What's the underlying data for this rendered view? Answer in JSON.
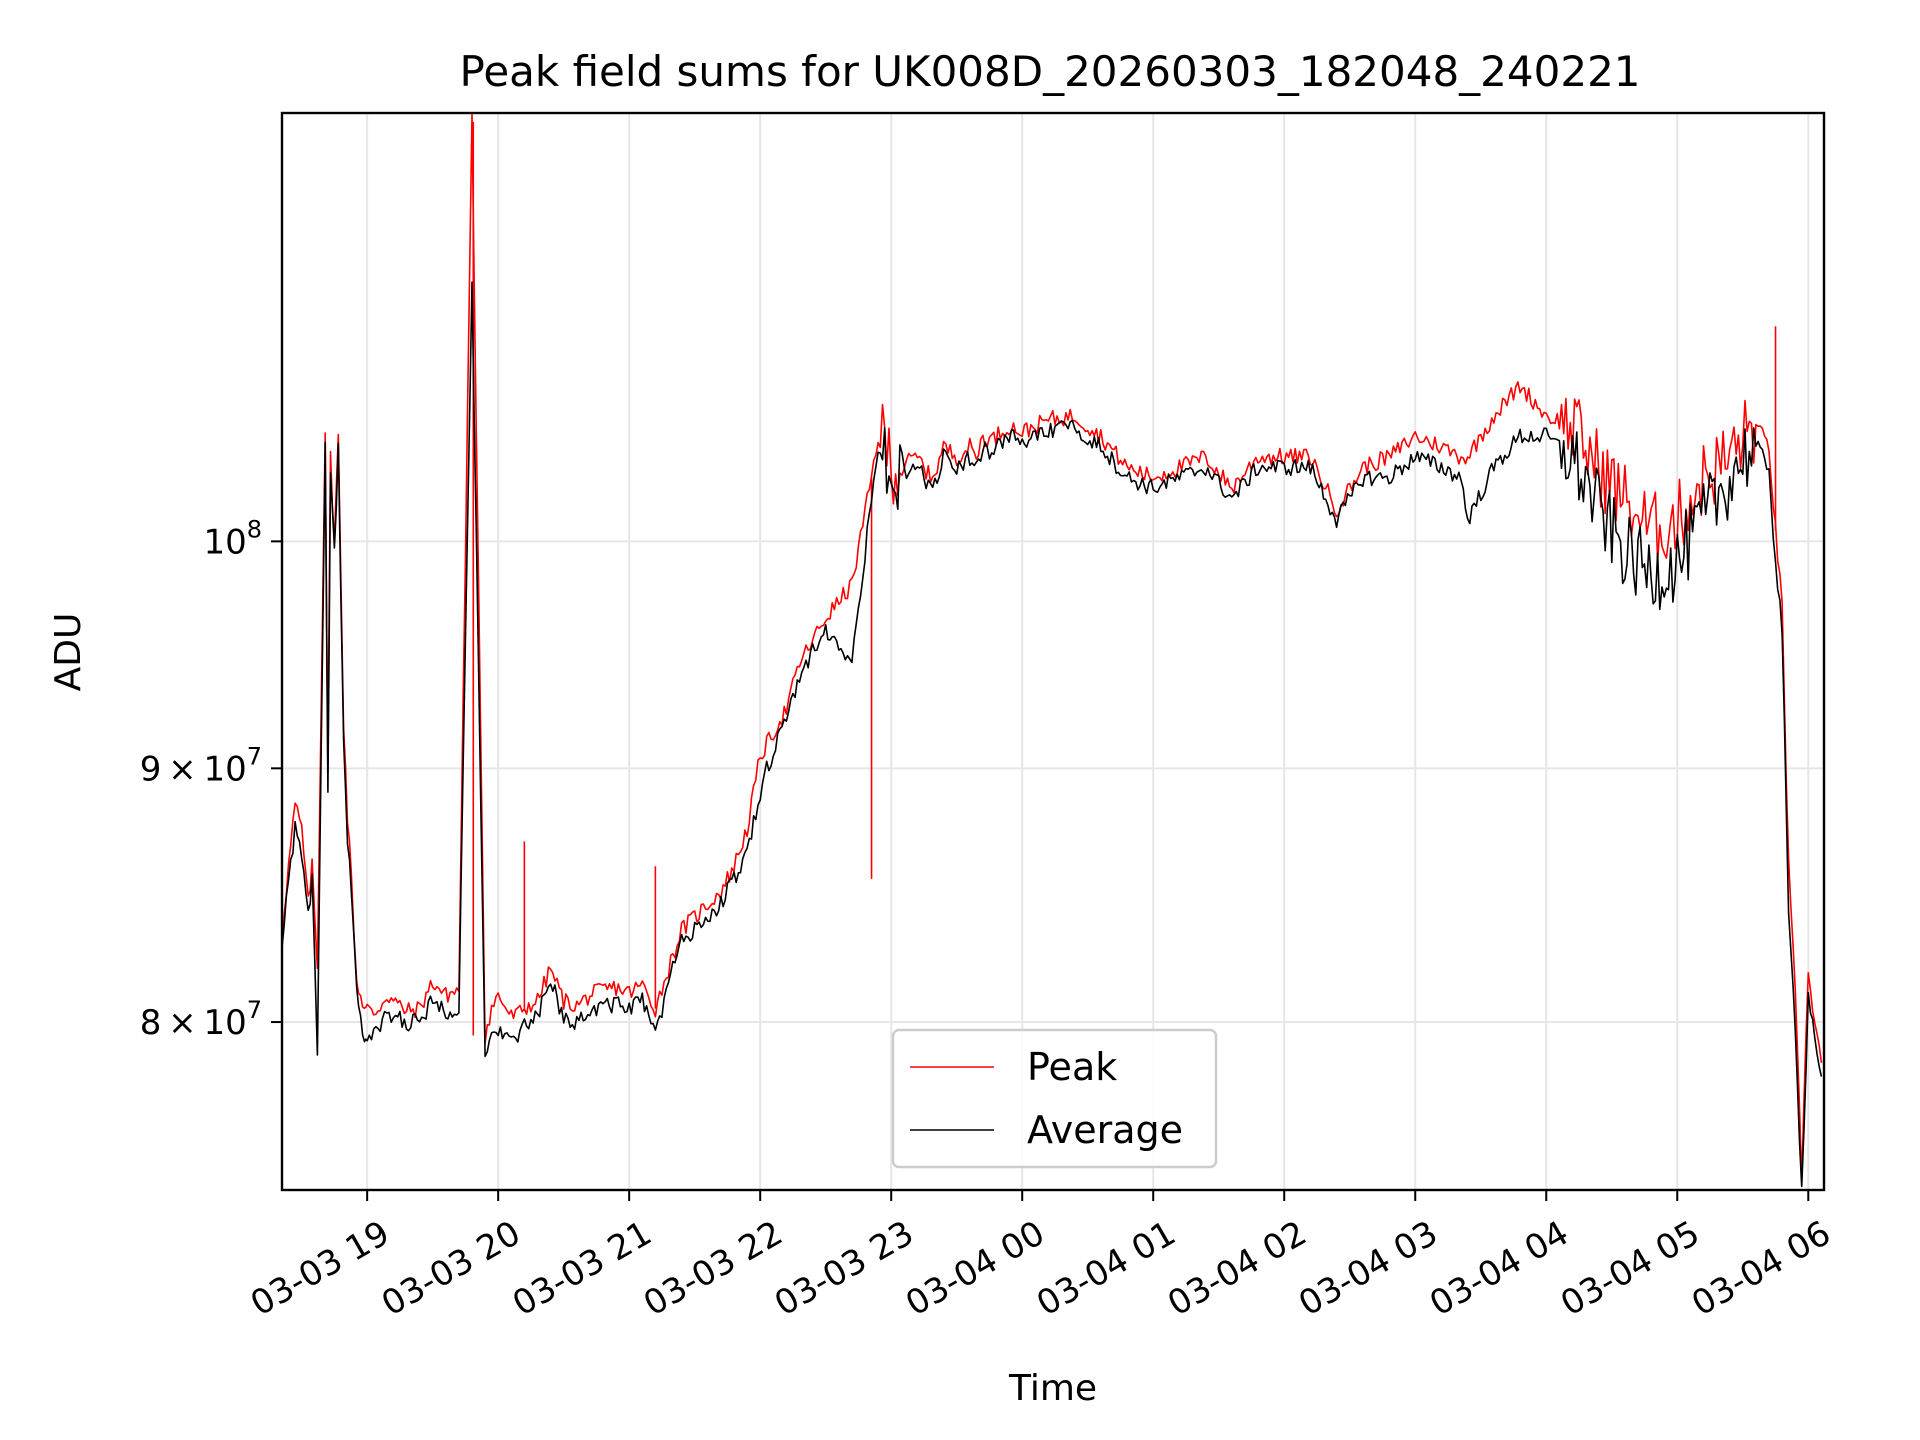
{
  "chart_data": {
    "type": "line",
    "title": "Peak field sums for UK008D_20260303_182048_240221",
    "xlabel": "Time",
    "ylabel": "ADU",
    "yscale": "log",
    "ylim": [
      74000000,
      122000000
    ],
    "xlim_hours": [
      -0.65,
      11.12
    ],
    "grid": true,
    "legend_position": "lower-center",
    "x_ticks": [
      {
        "label": "03-03 19",
        "hour": 0
      },
      {
        "label": "03-03 20",
        "hour": 1
      },
      {
        "label": "03-03 21",
        "hour": 2
      },
      {
        "label": "03-03 22",
        "hour": 3
      },
      {
        "label": "03-03 23",
        "hour": 4
      },
      {
        "label": "03-04 00",
        "hour": 5
      },
      {
        "label": "03-04 01",
        "hour": 6
      },
      {
        "label": "03-04 02",
        "hour": 7
      },
      {
        "label": "03-04 03",
        "hour": 8
      },
      {
        "label": "03-04 04",
        "hour": 9
      },
      {
        "label": "03-04 05",
        "hour": 10
      },
      {
        "label": "03-04 06",
        "hour": 11
      }
    ],
    "y_ticks": [
      {
        "value": 80000000,
        "base": "8",
        "exp": "7"
      },
      {
        "value": 90000000,
        "base": "9",
        "exp": "7"
      },
      {
        "value": 100000000,
        "base": "10",
        "exp": "8"
      }
    ],
    "times_symbol": "×",
    "series": [
      {
        "name": "Peak",
        "color": "#ff0000",
        "x_hours": [
          -0.65,
          -0.6,
          -0.55,
          -0.5,
          -0.45,
          -0.42,
          -0.38,
          -0.32,
          -0.3,
          -0.28,
          -0.25,
          -0.22,
          -0.2,
          -0.18,
          -0.15,
          -0.12,
          -0.08,
          -0.05,
          -0.02,
          0.0,
          0.05,
          0.1,
          0.15,
          0.2,
          0.3,
          0.4,
          0.5,
          0.6,
          0.7,
          0.8,
          0.9,
          0.95,
          1.0,
          1.1,
          1.15,
          1.2,
          1.3,
          1.4,
          1.5,
          1.6,
          1.7,
          1.8,
          1.9,
          2.0,
          2.1,
          2.2,
          2.3,
          2.4,
          2.5,
          2.6,
          2.7,
          2.8,
          2.9,
          3.0,
          3.05,
          3.1,
          3.15,
          3.2,
          3.3,
          3.5,
          3.7,
          3.85,
          3.9,
          3.95,
          4.05,
          4.2,
          4.3,
          4.35,
          4.4,
          4.5,
          4.6,
          4.65,
          4.7,
          4.75,
          4.8,
          4.9,
          5.0,
          5.2,
          5.4,
          5.6,
          5.8,
          6.0,
          6.2,
          6.4,
          6.6,
          6.8,
          7.0,
          7.2,
          7.4,
          7.6,
          7.8,
          8.0,
          8.2,
          8.35,
          8.4,
          8.6,
          8.8,
          9.0,
          9.2,
          9.4,
          9.6,
          9.8,
          10.0,
          10.2,
          10.4,
          10.5,
          10.6,
          10.7,
          10.75,
          10.8,
          10.85,
          10.9,
          10.95,
          11.0,
          11.05,
          11.1
        ],
        "values": [
          83500000,
          86000000,
          88500000,
          87500000,
          84500000,
          86000000,
          82000000,
          105500000,
          90000000,
          104000000,
          100000000,
          105000000,
          98000000,
          92000000,
          88000000,
          85500000,
          81500000,
          81000000,
          80500000,
          80500000,
          80300000,
          80600000,
          81000000,
          80800000,
          80400000,
          80500000,
          81500000,
          81000000,
          81200000,
          121500000,
          79500000,
          80500000,
          81000000,
          80200000,
          80300000,
          80500000,
          80800000,
          82000000,
          80800000,
          80600000,
          81000000,
          81200000,
          81300000,
          81100000,
          81400000,
          80500000,
          82000000,
          83500000,
          84000000,
          84500000,
          85000000,
          86000000,
          87500000,
          90500000,
          91000000,
          91500000,
          92000000,
          92500000,
          94500000,
          96500000,
          98000000,
          103000000,
          105000000,
          104500000,
          103500000,
          104000000,
          103000000,
          103500000,
          104500000,
          104000000,
          104500000,
          104000000,
          105000000,
          104800000,
          105000000,
          105500000,
          105200000,
          105800000,
          106000000,
          105000000,
          103500000,
          103000000,
          103500000,
          104000000,
          102500000,
          104000000,
          104000000,
          104000000,
          101500000,
          103500000,
          104000000,
          105000000,
          104500000,
          104000000,
          104000000,
          106000000,
          107500000,
          106000000,
          105500000,
          103500000,
          102000000,
          100500000,
          101000000,
          103000000,
          104000000,
          105000000,
          105500000,
          104500000,
          100500000,
          97000000,
          86000000,
          81000000,
          74500000,
          82000000,
          80000000,
          78500000
        ],
        "spikes": [
          {
            "x_hour": 0.81,
            "value": 121500000
          },
          {
            "x_hour": 1.2,
            "value": 87000000
          },
          {
            "x_hour": 2.2,
            "value": 86000000
          },
          {
            "x_hour": 3.85,
            "value": 85500000
          },
          {
            "x_hour": 10.75,
            "value": 110500000
          }
        ]
      },
      {
        "name": "Average",
        "color": "#000000",
        "x_hours": [
          -0.65,
          -0.6,
          -0.55,
          -0.5,
          -0.45,
          -0.42,
          -0.38,
          -0.32,
          -0.3,
          -0.28,
          -0.25,
          -0.22,
          -0.2,
          -0.18,
          -0.15,
          -0.12,
          -0.08,
          -0.05,
          -0.02,
          0.0,
          0.05,
          0.1,
          0.15,
          0.2,
          0.3,
          0.4,
          0.5,
          0.6,
          0.7,
          0.8,
          0.9,
          0.95,
          1.0,
          1.1,
          1.15,
          1.2,
          1.3,
          1.4,
          1.5,
          1.6,
          1.7,
          1.8,
          1.9,
          2.0,
          2.1,
          2.2,
          2.3,
          2.4,
          2.5,
          2.6,
          2.7,
          2.8,
          2.9,
          3.0,
          3.05,
          3.1,
          3.15,
          3.2,
          3.3,
          3.5,
          3.7,
          3.85,
          3.9,
          3.95,
          4.05,
          4.2,
          4.3,
          4.35,
          4.4,
          4.5,
          4.6,
          4.65,
          4.7,
          4.75,
          4.8,
          4.9,
          5.0,
          5.2,
          5.4,
          5.6,
          5.8,
          6.0,
          6.2,
          6.4,
          6.6,
          6.8,
          7.0,
          7.2,
          7.4,
          7.6,
          7.8,
          8.0,
          8.2,
          8.35,
          8.4,
          8.6,
          8.8,
          9.0,
          9.2,
          9.4,
          9.6,
          9.8,
          10.0,
          10.2,
          10.4,
          10.5,
          10.6,
          10.7,
          10.75,
          10.8,
          10.85,
          10.9,
          10.95,
          11.0,
          11.05,
          11.1
        ],
        "values": [
          83000000,
          85500000,
          87500000,
          86500000,
          84000000,
          85500000,
          79000000,
          104500000,
          89000000,
          103000000,
          99500000,
          104500000,
          97000000,
          91000000,
          87000000,
          85000000,
          81000000,
          80000000,
          79500000,
          79500000,
          79500000,
          79800000,
          80300000,
          80200000,
          80000000,
          80000000,
          80800000,
          80400000,
          80600000,
          113000000,
          78500000,
          79500000,
          79800000,
          79300000,
          79500000,
          79800000,
          80200000,
          81500000,
          80200000,
          80000000,
          80400000,
          80600000,
          80700000,
          80500000,
          80800000,
          79500000,
          81500000,
          83000000,
          83500000,
          84000000,
          84500000,
          85500000,
          86500000,
          89000000,
          90000000,
          90500000,
          91500000,
          92000000,
          94000000,
          96000000,
          94500000,
          102000000,
          104000000,
          104000000,
          103000000,
          103500000,
          102500000,
          103000000,
          104000000,
          103500000,
          104000000,
          103500000,
          104500000,
          104300000,
          104500000,
          105000000,
          104700000,
          105200000,
          105500000,
          104500000,
          103000000,
          102500000,
          103000000,
          103500000,
          102000000,
          103500000,
          103500000,
          103500000,
          101000000,
          103000000,
          103000000,
          104000000,
          103500000,
          103000000,
          101000000,
          103500000,
          105000000,
          105000000,
          104000000,
          101500000,
          99500000,
          98500000,
          99000000,
          101000000,
          103000000,
          104000000,
          104500000,
          103500000,
          99000000,
          96000000,
          84000000,
          80000000,
          74000000,
          81000000,
          79500000,
          78000000
        ]
      }
    ]
  }
}
